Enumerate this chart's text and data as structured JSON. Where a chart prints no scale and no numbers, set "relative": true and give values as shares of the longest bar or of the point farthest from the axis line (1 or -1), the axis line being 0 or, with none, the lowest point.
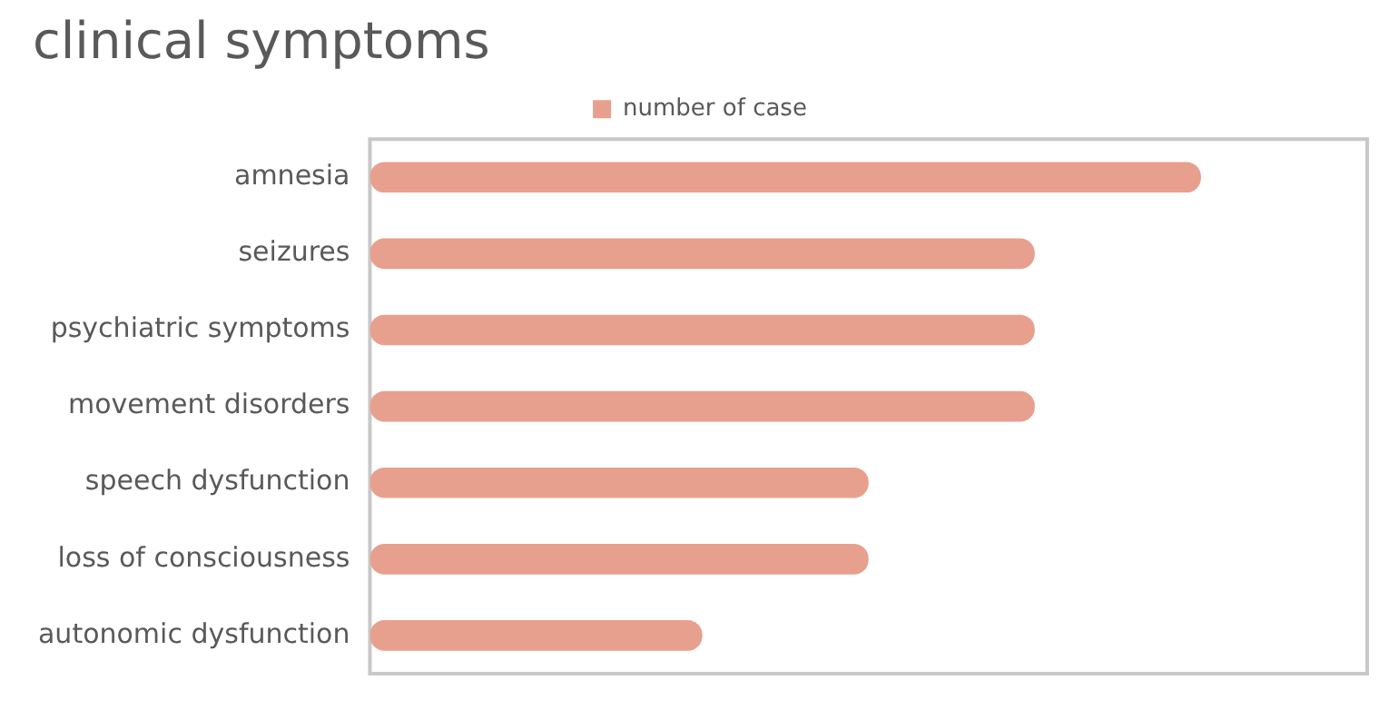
{
  "chart_data": {
    "type": "bar",
    "orientation": "horizontal",
    "relative": true,
    "title": "clinical symptoms",
    "categories": [
      "amnesia",
      "seizures",
      "psychiatric symptoms",
      "movement disorders",
      "speech dysfunction",
      "loss of consciousness",
      "autonomic dysfunction"
    ],
    "series": [
      {
        "name": "number of case",
        "color": "#e8a08e",
        "values": [
          1,
          0.8,
          0.8,
          0.8,
          0.6,
          0.6,
          0.4
        ]
      }
    ],
    "legend": "top"
  }
}
